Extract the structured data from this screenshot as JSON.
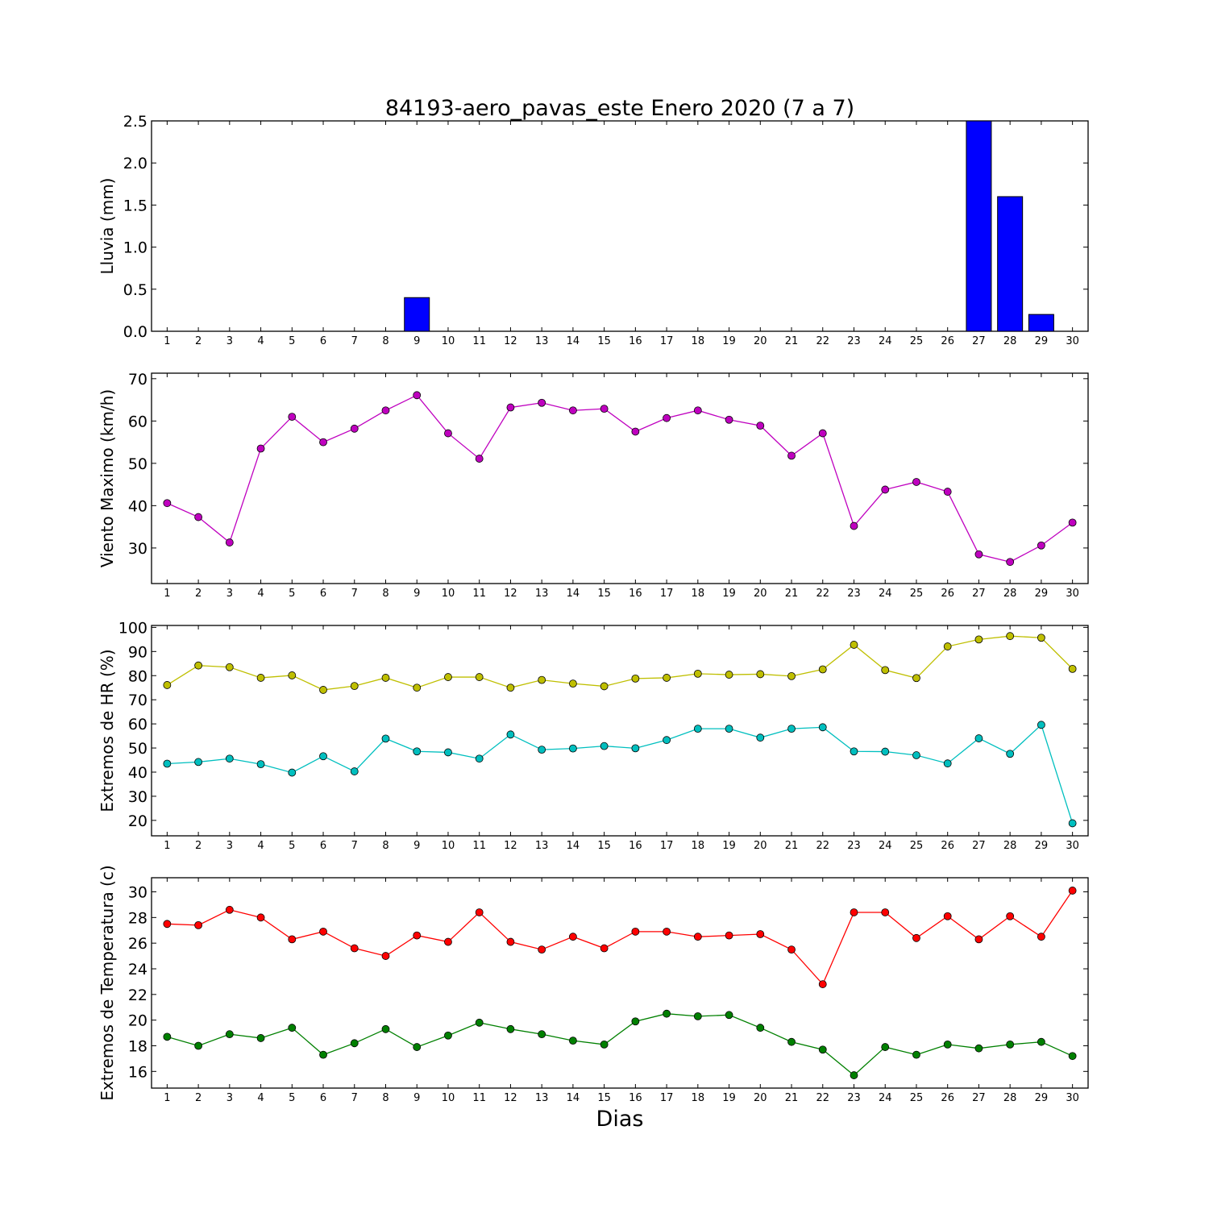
{
  "chart_data": {
    "type": "multi-panel",
    "title": "84193-aero_pavas_este Enero 2020  (7 a 7)",
    "xlabel": "Dias",
    "x": [
      1,
      2,
      3,
      4,
      5,
      6,
      7,
      8,
      9,
      10,
      11,
      12,
      13,
      14,
      15,
      16,
      17,
      18,
      19,
      20,
      21,
      22,
      23,
      24,
      25,
      26,
      27,
      28,
      29,
      30
    ],
    "panels": [
      {
        "type": "bar",
        "ylabel": "Lluvia (mm)",
        "ylim": [
          0,
          2.5
        ],
        "yticks": [
          "0.0",
          "0.5",
          "1.0",
          "1.5",
          "2.0",
          "2.5"
        ],
        "series": [
          {
            "color": "#0000ff",
            "values": [
              0,
              0,
              0,
              0,
              0,
              0,
              0,
              0,
              0.4,
              0,
              0,
              0,
              0,
              0,
              0,
              0,
              0,
              0,
              0,
              0,
              0,
              0,
              0,
              0,
              0,
              0,
              2.5,
              1.6,
              0.2,
              0
            ]
          }
        ]
      },
      {
        "type": "line",
        "ylabel": "Viento Maximo (km/h)",
        "ylim": [
          21.6,
          71.3
        ],
        "yticks": [
          "30",
          "40",
          "50",
          "60",
          "70"
        ],
        "series": [
          {
            "color": "#bf00bf",
            "values": [
              40.6,
              37.3,
              31.3,
              53.5,
              61.0,
              55.0,
              58.2,
              62.5,
              66.1,
              57.1,
              51.1,
              63.2,
              64.3,
              62.5,
              62.9,
              57.5,
              60.7,
              62.5,
              60.3,
              58.9,
              51.8,
              57.1,
              35.2,
              43.8,
              45.6,
              43.3,
              28.5,
              26.7,
              30.6,
              36.0
            ]
          }
        ]
      },
      {
        "type": "line",
        "ylabel": "Extremos de HR (%)",
        "ylim": [
          13.6,
          100.8
        ],
        "yticks": [
          "20",
          "30",
          "40",
          "50",
          "60",
          "70",
          "80",
          "90",
          "100"
        ],
        "series": [
          {
            "color": "#bfbf00",
            "values": [
              76.1,
              84.2,
              83.5,
              79.1,
              80.1,
              74.1,
              75.7,
              79.1,
              75.0,
              79.4,
              79.4,
              75.0,
              78.2,
              76.7,
              75.6,
              78.8,
              79.1,
              80.8,
              80.4,
              80.6,
              79.8,
              82.6,
              92.8,
              82.3,
              79.0,
              92.1,
              95.0,
              96.4,
              95.7,
              82.8
            ]
          },
          {
            "color": "#00bfbf",
            "values": [
              43.5,
              44.2,
              45.6,
              43.3,
              39.8,
              46.6,
              40.3,
              53.9,
              48.6,
              48.2,
              45.6,
              55.6,
              49.3,
              49.8,
              50.8,
              49.9,
              53.3,
              58.0,
              58.0,
              54.3,
              58.0,
              58.6,
              48.6,
              48.5,
              47.0,
              43.6,
              54.0,
              47.6,
              59.6,
              18.8
            ]
          }
        ]
      },
      {
        "type": "line",
        "ylabel": "Extremos de Temperatura (c)",
        "ylim": [
          14.7,
          31.1
        ],
        "yticks": [
          "16",
          "18",
          "20",
          "22",
          "24",
          "26",
          "28",
          "30"
        ],
        "series": [
          {
            "color": "#ff0000",
            "values": [
              27.5,
              27.4,
              28.6,
              28.0,
              26.3,
              26.9,
              25.6,
              25.0,
              26.6,
              26.1,
              28.4,
              26.1,
              25.5,
              26.5,
              25.6,
              26.9,
              26.9,
              26.5,
              26.6,
              26.7,
              25.5,
              22.8,
              28.4,
              28.4,
              26.4,
              28.1,
              26.3,
              28.1,
              26.5,
              30.1
            ]
          },
          {
            "color": "#008000",
            "values": [
              18.7,
              18.0,
              18.9,
              18.6,
              19.4,
              17.3,
              18.2,
              19.3,
              17.9,
              18.8,
              19.8,
              19.3,
              18.9,
              18.4,
              18.1,
              19.9,
              20.5,
              20.3,
              20.4,
              19.4,
              18.3,
              17.7,
              15.7,
              17.9,
              17.3,
              18.1,
              17.8,
              18.1,
              18.3,
              17.2
            ]
          }
        ]
      }
    ]
  }
}
